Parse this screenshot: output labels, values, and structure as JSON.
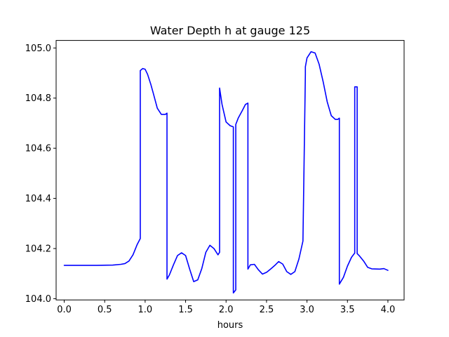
{
  "chart_data": {
    "type": "line",
    "title": "Water Depth h at gauge 125",
    "xlabel": "hours",
    "ylabel": "",
    "xlim": [
      -0.1,
      4.2
    ],
    "ylim": [
      103.995,
      105.03
    ],
    "xticks": [
      0.0,
      0.5,
      1.0,
      1.5,
      2.0,
      2.5,
      3.0,
      3.5,
      4.0
    ],
    "xtick_labels": [
      "0.0",
      "0.5",
      "1.0",
      "1.5",
      "2.0",
      "2.5",
      "3.0",
      "3.5",
      "4.0"
    ],
    "yticks": [
      104.0,
      104.2,
      104.4,
      104.6,
      104.8,
      105.0
    ],
    "ytick_labels": [
      "104.0",
      "104.2",
      "104.4",
      "104.6",
      "104.8",
      "105.0"
    ],
    "grid": false,
    "legend": "none",
    "series": [
      {
        "color": "#0000ff",
        "x": [
          0.0,
          0.2,
          0.4,
          0.6,
          0.7,
          0.75,
          0.8,
          0.85,
          0.9,
          0.94,
          0.94,
          0.97,
          1.0,
          1.03,
          1.07,
          1.1,
          1.15,
          1.2,
          1.25,
          1.27,
          1.27,
          1.3,
          1.35,
          1.4,
          1.45,
          1.5,
          1.55,
          1.6,
          1.65,
          1.7,
          1.75,
          1.8,
          1.85,
          1.9,
          1.92,
          1.92,
          1.95,
          2.0,
          2.05,
          2.09,
          2.09,
          2.12,
          2.12,
          2.15,
          2.2,
          2.24,
          2.27,
          2.27,
          2.3,
          2.35,
          2.4,
          2.45,
          2.5,
          2.55,
          2.6,
          2.65,
          2.7,
          2.75,
          2.8,
          2.85,
          2.9,
          2.95,
          2.98,
          2.98,
          3.0,
          3.05,
          3.1,
          3.15,
          3.2,
          3.25,
          3.3,
          3.35,
          3.38,
          3.4,
          3.4,
          3.45,
          3.5,
          3.55,
          3.59,
          3.59,
          3.6,
          3.62,
          3.62,
          3.65,
          3.7,
          3.75,
          3.8,
          3.9,
          3.95,
          4.0
        ],
        "y": [
          104.133,
          104.133,
          104.133,
          104.134,
          104.137,
          104.14,
          104.15,
          104.175,
          104.215,
          104.24,
          104.91,
          104.918,
          104.915,
          104.895,
          104.855,
          104.82,
          104.76,
          104.735,
          104.735,
          104.74,
          104.078,
          104.095,
          104.135,
          104.172,
          104.183,
          104.172,
          104.118,
          104.068,
          104.075,
          104.12,
          104.185,
          104.213,
          104.2,
          104.175,
          104.185,
          104.84,
          104.775,
          104.705,
          104.69,
          104.685,
          104.023,
          104.035,
          104.695,
          104.72,
          104.75,
          104.775,
          104.78,
          104.118,
          104.135,
          104.137,
          104.115,
          104.098,
          104.105,
          104.118,
          104.132,
          104.148,
          104.138,
          104.108,
          104.097,
          104.108,
          104.158,
          104.23,
          104.895,
          104.925,
          104.96,
          104.985,
          104.98,
          104.935,
          104.865,
          104.785,
          104.73,
          104.715,
          104.715,
          104.72,
          104.058,
          104.085,
          104.13,
          104.165,
          104.182,
          104.845,
          104.845,
          104.845,
          104.18,
          104.17,
          104.15,
          104.125,
          104.119,
          104.118,
          104.12,
          104.113
        ]
      }
    ]
  }
}
